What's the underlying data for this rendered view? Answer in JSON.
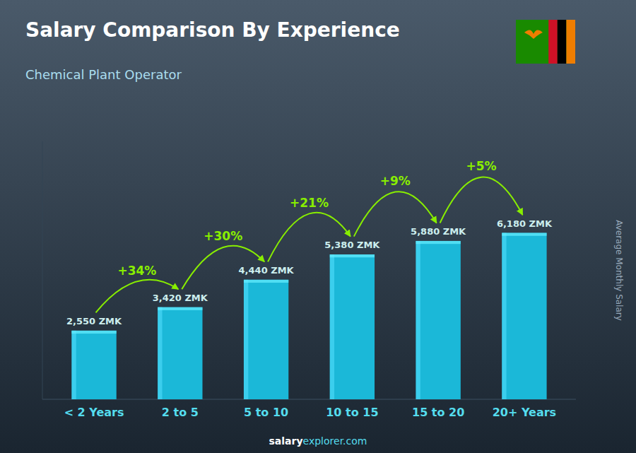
{
  "chart_data": {
    "type": "bar",
    "title": "Salary Comparison By Experience",
    "subtitle": "Chemical Plant Operator",
    "ylabel": "Average Monthly Salary",
    "categories": [
      "< 2 Years",
      "2 to 5",
      "5 to 10",
      "10 to 15",
      "15 to 20",
      "20+ Years"
    ],
    "values": [
      2550,
      3420,
      4440,
      5380,
      5880,
      6180
    ],
    "value_labels": [
      "2,550 ZMK",
      "3,420 ZMK",
      "4,440 ZMK",
      "5,380 ZMK",
      "5,880 ZMK",
      "6,180 ZMK"
    ],
    "data_labels": true,
    "annotations": [
      "+34%",
      "+30%",
      "+21%",
      "+9%",
      "+5%"
    ],
    "footer": [
      "salary",
      "explorer.com"
    ],
    "color": "#1BB8D8",
    "ylim": [
      0,
      9579
    ],
    "tick_labels": "x",
    "grid": false
  }
}
